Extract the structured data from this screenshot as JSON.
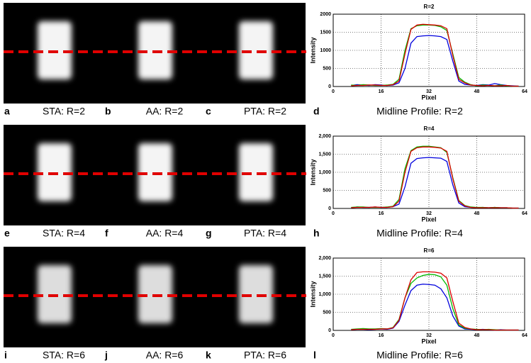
{
  "panels": [
    [
      {
        "letter": "a",
        "caption": "STA: R=2"
      },
      {
        "letter": "b",
        "caption": "AA: R=2"
      },
      {
        "letter": "c",
        "caption": "PTA: R=2"
      }
    ],
    [
      {
        "letter": "e",
        "caption": "STA: R=4"
      },
      {
        "letter": "f",
        "caption": "AA: R=4"
      },
      {
        "letter": "g",
        "caption": "PTA: R=4"
      }
    ],
    [
      {
        "letter": "i",
        "caption": "STA: R=6"
      },
      {
        "letter": "j",
        "caption": "AA: R=6"
      },
      {
        "letter": "k",
        "caption": "PTA: R=6"
      }
    ]
  ],
  "chart_data": [
    {
      "type": "line",
      "title": "R=2",
      "letter": "d",
      "caption": "Midline Profile: R=2",
      "x_label": "Pixel",
      "y_label": "Intensity",
      "grid": true,
      "x": [
        6,
        8,
        10,
        12,
        14,
        16,
        18,
        20,
        22,
        24,
        26,
        28,
        30,
        32,
        34,
        36,
        38,
        40,
        42,
        44,
        46,
        48,
        50,
        52,
        54,
        56,
        58,
        60,
        62
      ],
      "series": [
        {
          "color": "#0000dd",
          "values": [
            30,
            50,
            40,
            30,
            50,
            40,
            30,
            40,
            100,
            500,
            1200,
            1380,
            1400,
            1410,
            1400,
            1380,
            1300,
            700,
            150,
            60,
            40,
            30,
            50,
            40,
            80,
            50,
            30,
            20,
            10
          ]
        },
        {
          "color": "#00bb00",
          "values": [
            40,
            30,
            50,
            40,
            30,
            30,
            40,
            60,
            200,
            1000,
            1600,
            1680,
            1700,
            1700,
            1690,
            1650,
            1550,
            900,
            250,
            120,
            50,
            20,
            40,
            30,
            20,
            40,
            20,
            10,
            10
          ]
        },
        {
          "color": "#dd0000",
          "values": [
            20,
            30,
            30,
            40,
            40,
            30,
            30,
            50,
            150,
            900,
            1580,
            1700,
            1720,
            1710,
            1700,
            1680,
            1600,
            850,
            200,
            100,
            40,
            30,
            20,
            30,
            20,
            20,
            30,
            10,
            10
          ]
        }
      ],
      "xlim": [
        0,
        64
      ],
      "xticks": [
        0,
        16,
        32,
        48,
        64
      ],
      "ylim": [
        0,
        2000
      ],
      "yticks": [
        0,
        500,
        1000,
        1500,
        2000
      ]
    },
    {
      "type": "line",
      "title": "R=4",
      "letter": "h",
      "caption": "Midline Profile: R=4",
      "x_label": "Pixel",
      "y_label": "Intensity",
      "grid": true,
      "x": [
        6,
        8,
        10,
        12,
        14,
        16,
        18,
        20,
        22,
        24,
        26,
        28,
        30,
        32,
        34,
        36,
        38,
        40,
        42,
        44,
        46,
        48,
        50,
        52,
        54,
        56,
        58,
        60,
        62
      ],
      "series": [
        {
          "color": "#0000dd",
          "values": [
            20,
            40,
            30,
            30,
            40,
            30,
            30,
            50,
            120,
            600,
            1250,
            1380,
            1400,
            1410,
            1400,
            1390,
            1300,
            650,
            150,
            50,
            30,
            20,
            30,
            20,
            30,
            20,
            20,
            10,
            10
          ]
        },
        {
          "color": "#00bb00",
          "values": [
            30,
            40,
            40,
            30,
            30,
            30,
            40,
            60,
            250,
            1100,
            1600,
            1700,
            1720,
            1720,
            1700,
            1680,
            1550,
            850,
            220,
            80,
            40,
            30,
            30,
            20,
            30,
            20,
            20,
            10,
            10
          ]
        },
        {
          "color": "#dd0000",
          "values": [
            20,
            30,
            30,
            30,
            40,
            30,
            30,
            50,
            200,
            1000,
            1580,
            1680,
            1700,
            1700,
            1690,
            1670,
            1580,
            820,
            200,
            70,
            30,
            20,
            20,
            20,
            20,
            20,
            20,
            10,
            10
          ]
        }
      ],
      "xlim": [
        0,
        64
      ],
      "xticks": [
        0,
        16,
        32,
        48,
        64
      ],
      "ylim": [
        0,
        2000
      ],
      "yticks": [
        0,
        500,
        {
          "value": 1000,
          "label": "1,000"
        },
        {
          "value": 1500,
          "label": "1,500"
        },
        {
          "value": 2000,
          "label": "2,000"
        }
      ]
    },
    {
      "type": "line",
      "title": "R=6",
      "letter": "l",
      "caption": "Midline Profile: R=6",
      "x_label": "Pixel",
      "y_label": "Intensity",
      "grid": true,
      "x": [
        6,
        8,
        10,
        12,
        14,
        16,
        18,
        20,
        22,
        24,
        26,
        28,
        30,
        32,
        34,
        36,
        38,
        40,
        42,
        44,
        46,
        48,
        50,
        52,
        54,
        56,
        58,
        60,
        62
      ],
      "series": [
        {
          "color": "#0000dd",
          "values": [
            20,
            30,
            30,
            20,
            30,
            40,
            30,
            60,
            250,
            700,
            1100,
            1250,
            1280,
            1270,
            1250,
            1150,
            900,
            400,
            120,
            40,
            30,
            20,
            30,
            20,
            10,
            20,
            10,
            10,
            10
          ]
        },
        {
          "color": "#00bb00",
          "values": [
            30,
            40,
            50,
            40,
            40,
            50,
            40,
            80,
            300,
            900,
            1300,
            1450,
            1520,
            1550,
            1540,
            1480,
            1250,
            600,
            150,
            60,
            40,
            30,
            20,
            30,
            20,
            10,
            10,
            10,
            10
          ]
        },
        {
          "color": "#dd0000",
          "values": [
            20,
            30,
            30,
            30,
            30,
            40,
            40,
            70,
            280,
            900,
            1400,
            1600,
            1620,
            1620,
            1610,
            1580,
            1450,
            800,
            200,
            80,
            40,
            20,
            20,
            20,
            10,
            10,
            10,
            10,
            10
          ]
        }
      ],
      "xlim": [
        0,
        64
      ],
      "xticks": [
        0,
        16,
        32,
        48,
        64
      ],
      "ylim": [
        0,
        2000
      ],
      "yticks": [
        0,
        500,
        {
          "value": 1000,
          "label": "1,000"
        },
        {
          "value": 1500,
          "label": "1,500"
        },
        {
          "value": 2000,
          "label": "2,000"
        }
      ]
    }
  ]
}
